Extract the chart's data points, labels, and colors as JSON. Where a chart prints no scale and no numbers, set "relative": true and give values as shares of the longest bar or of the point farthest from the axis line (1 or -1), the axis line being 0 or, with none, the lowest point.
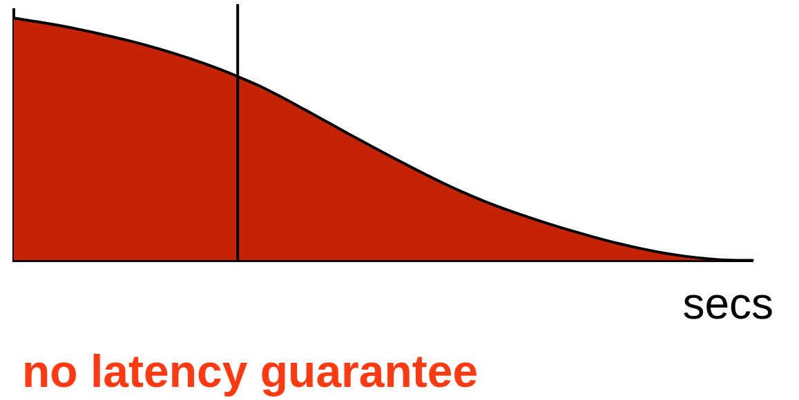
{
  "chart_data": {
    "type": "area",
    "relative": true,
    "categories": [
      null,
      null,
      null,
      null,
      null,
      null,
      null,
      null,
      null,
      null,
      null,
      null,
      null,
      null,
      null,
      null,
      null,
      null,
      null,
      null,
      null,
      null,
      null,
      null,
      null,
      null,
      null,
      null,
      null,
      null,
      null,
      null,
      null,
      null
    ],
    "values": [
      1,
      0.986,
      0.97,
      0.952,
      0.932,
      0.91,
      0.886,
      0.859,
      0.829,
      0.796,
      0.759,
      0.719,
      0.672,
      0.622,
      0.571,
      0.52,
      0.47,
      0.421,
      0.373,
      0.327,
      0.284,
      0.245,
      0.21,
      0.178,
      0.148,
      0.12,
      0.094,
      0.07,
      0.049,
      0.031,
      0.017,
      0.007,
      0.001,
      0
    ],
    "color": "#c42306",
    "xlabel": "secs",
    "annotations": [
      "no latency guarantee"
    ]
  }
}
